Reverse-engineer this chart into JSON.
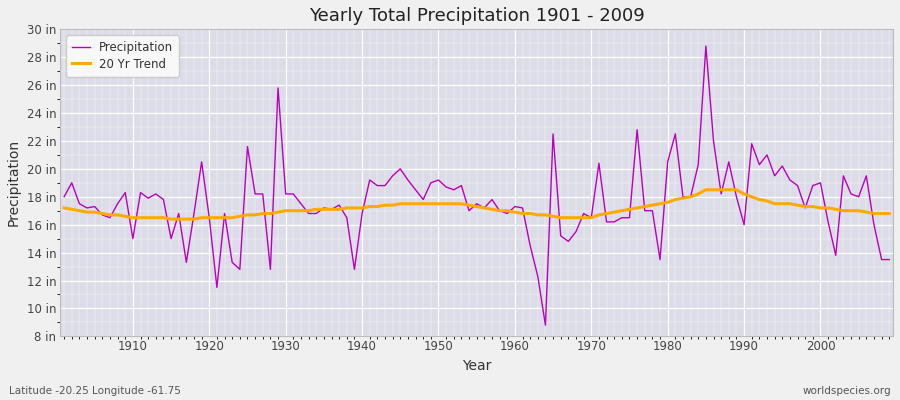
{
  "title": "Yearly Total Precipitation 1901 - 2009",
  "xlabel": "Year",
  "ylabel": "Precipitation",
  "subtitle_left": "Latitude -20.25 Longitude -61.75",
  "subtitle_right": "worldspecies.org",
  "ylim": [
    8,
    30
  ],
  "yticks": [
    8,
    10,
    12,
    14,
    16,
    18,
    20,
    22,
    24,
    26,
    28,
    30
  ],
  "ytick_labels": [
    "8 in",
    "10 in",
    "12 in",
    "14 in",
    "16 in",
    "18 in",
    "20 in",
    "22 in",
    "24 in",
    "26 in",
    "28 in",
    "30 in"
  ],
  "xlim": [
    1901,
    2009
  ],
  "xticks": [
    1910,
    1920,
    1930,
    1940,
    1950,
    1960,
    1970,
    1980,
    1990,
    2000
  ],
  "precip_color": "#bb00bb",
  "trend_color": "#ffaa00",
  "fig_bg_color": "#f0f0f0",
  "plot_bg_color": "#dcdce8",
  "legend_bg": "#f8f8f8",
  "precipitation": {
    "1901": 18.0,
    "1902": 19.0,
    "1903": 17.5,
    "1904": 17.2,
    "1905": 17.3,
    "1906": 16.7,
    "1907": 16.5,
    "1908": 17.5,
    "1909": 18.3,
    "1910": 15.0,
    "1911": 18.3,
    "1912": 17.9,
    "1913": 18.2,
    "1914": 17.8,
    "1915": 15.0,
    "1916": 16.8,
    "1917": 13.3,
    "1918": 16.8,
    "1919": 20.5,
    "1920": 16.5,
    "1921": 11.5,
    "1922": 16.8,
    "1923": 13.3,
    "1924": 12.8,
    "1925": 21.6,
    "1926": 18.2,
    "1927": 18.2,
    "1928": 12.8,
    "1929": 25.8,
    "1930": 18.2,
    "1931": 18.2,
    "1932": 17.5,
    "1933": 16.8,
    "1934": 16.8,
    "1935": 17.2,
    "1936": 17.1,
    "1937": 17.4,
    "1938": 16.5,
    "1939": 12.8,
    "1940": 16.8,
    "1941": 19.2,
    "1942": 18.8,
    "1943": 18.8,
    "1944": 19.5,
    "1945": 20.0,
    "1946": 19.2,
    "1947": 18.5,
    "1948": 17.8,
    "1949": 19.0,
    "1950": 19.2,
    "1951": 18.7,
    "1952": 18.5,
    "1953": 18.8,
    "1954": 17.0,
    "1955": 17.5,
    "1956": 17.2,
    "1957": 17.8,
    "1958": 17.0,
    "1959": 16.8,
    "1960": 17.3,
    "1961": 17.2,
    "1962": 14.5,
    "1963": 12.3,
    "1964": 8.8,
    "1965": 22.5,
    "1966": 15.2,
    "1967": 14.8,
    "1968": 15.5,
    "1969": 16.8,
    "1970": 16.5,
    "1971": 20.4,
    "1972": 16.2,
    "1973": 16.2,
    "1974": 16.5,
    "1975": 16.5,
    "1976": 22.8,
    "1977": 17.0,
    "1978": 17.0,
    "1979": 13.5,
    "1980": 20.5,
    "1981": 22.5,
    "1982": 18.0,
    "1983": 18.0,
    "1984": 20.3,
    "1985": 28.8,
    "1986": 22.0,
    "1987": 18.2,
    "1988": 20.5,
    "1989": 18.0,
    "1990": 16.0,
    "1991": 21.8,
    "1992": 20.3,
    "1993": 21.0,
    "1994": 19.5,
    "1995": 20.2,
    "1996": 19.2,
    "1997": 18.8,
    "1998": 17.2,
    "1999": 18.8,
    "2000": 19.0,
    "2001": 16.2,
    "2002": 13.8,
    "2003": 19.5,
    "2004": 18.2,
    "2005": 18.0,
    "2006": 19.5,
    "2007": 16.0,
    "2008": 13.5,
    "2009": 13.5
  },
  "trend": {
    "1901": 17.2,
    "1902": 17.1,
    "1903": 17.0,
    "1904": 16.9,
    "1905": 16.9,
    "1906": 16.8,
    "1907": 16.7,
    "1908": 16.7,
    "1909": 16.6,
    "1910": 16.5,
    "1911": 16.5,
    "1912": 16.5,
    "1913": 16.5,
    "1914": 16.5,
    "1915": 16.4,
    "1916": 16.4,
    "1917": 16.4,
    "1918": 16.4,
    "1919": 16.5,
    "1920": 16.5,
    "1921": 16.5,
    "1922": 16.5,
    "1923": 16.5,
    "1924": 16.6,
    "1925": 16.7,
    "1926": 16.7,
    "1927": 16.8,
    "1928": 16.8,
    "1929": 16.9,
    "1930": 17.0,
    "1931": 17.0,
    "1932": 17.0,
    "1933": 17.0,
    "1934": 17.1,
    "1935": 17.1,
    "1936": 17.1,
    "1937": 17.1,
    "1938": 17.2,
    "1939": 17.2,
    "1940": 17.2,
    "1941": 17.3,
    "1942": 17.3,
    "1943": 17.4,
    "1944": 17.4,
    "1945": 17.5,
    "1946": 17.5,
    "1947": 17.5,
    "1948": 17.5,
    "1949": 17.5,
    "1950": 17.5,
    "1951": 17.5,
    "1952": 17.5,
    "1953": 17.5,
    "1954": 17.4,
    "1955": 17.3,
    "1956": 17.2,
    "1957": 17.1,
    "1958": 17.0,
    "1959": 17.0,
    "1960": 16.9,
    "1961": 16.8,
    "1962": 16.8,
    "1963": 16.7,
    "1964": 16.7,
    "1965": 16.6,
    "1966": 16.5,
    "1967": 16.5,
    "1968": 16.5,
    "1969": 16.5,
    "1970": 16.5,
    "1971": 16.7,
    "1972": 16.8,
    "1973": 16.9,
    "1974": 17.0,
    "1975": 17.1,
    "1976": 17.2,
    "1977": 17.3,
    "1978": 17.4,
    "1979": 17.5,
    "1980": 17.6,
    "1981": 17.8,
    "1982": 17.9,
    "1983": 18.0,
    "1984": 18.2,
    "1985": 18.5,
    "1986": 18.5,
    "1987": 18.5,
    "1988": 18.5,
    "1989": 18.5,
    "1990": 18.2,
    "1991": 18.0,
    "1992": 17.8,
    "1993": 17.7,
    "1994": 17.5,
    "1995": 17.5,
    "1996": 17.5,
    "1997": 17.4,
    "1998": 17.3,
    "1999": 17.3,
    "2000": 17.2,
    "2001": 17.2,
    "2002": 17.1,
    "2003": 17.0,
    "2004": 17.0,
    "2005": 17.0,
    "2006": 16.9,
    "2007": 16.8,
    "2008": 16.8,
    "2009": 16.8
  }
}
